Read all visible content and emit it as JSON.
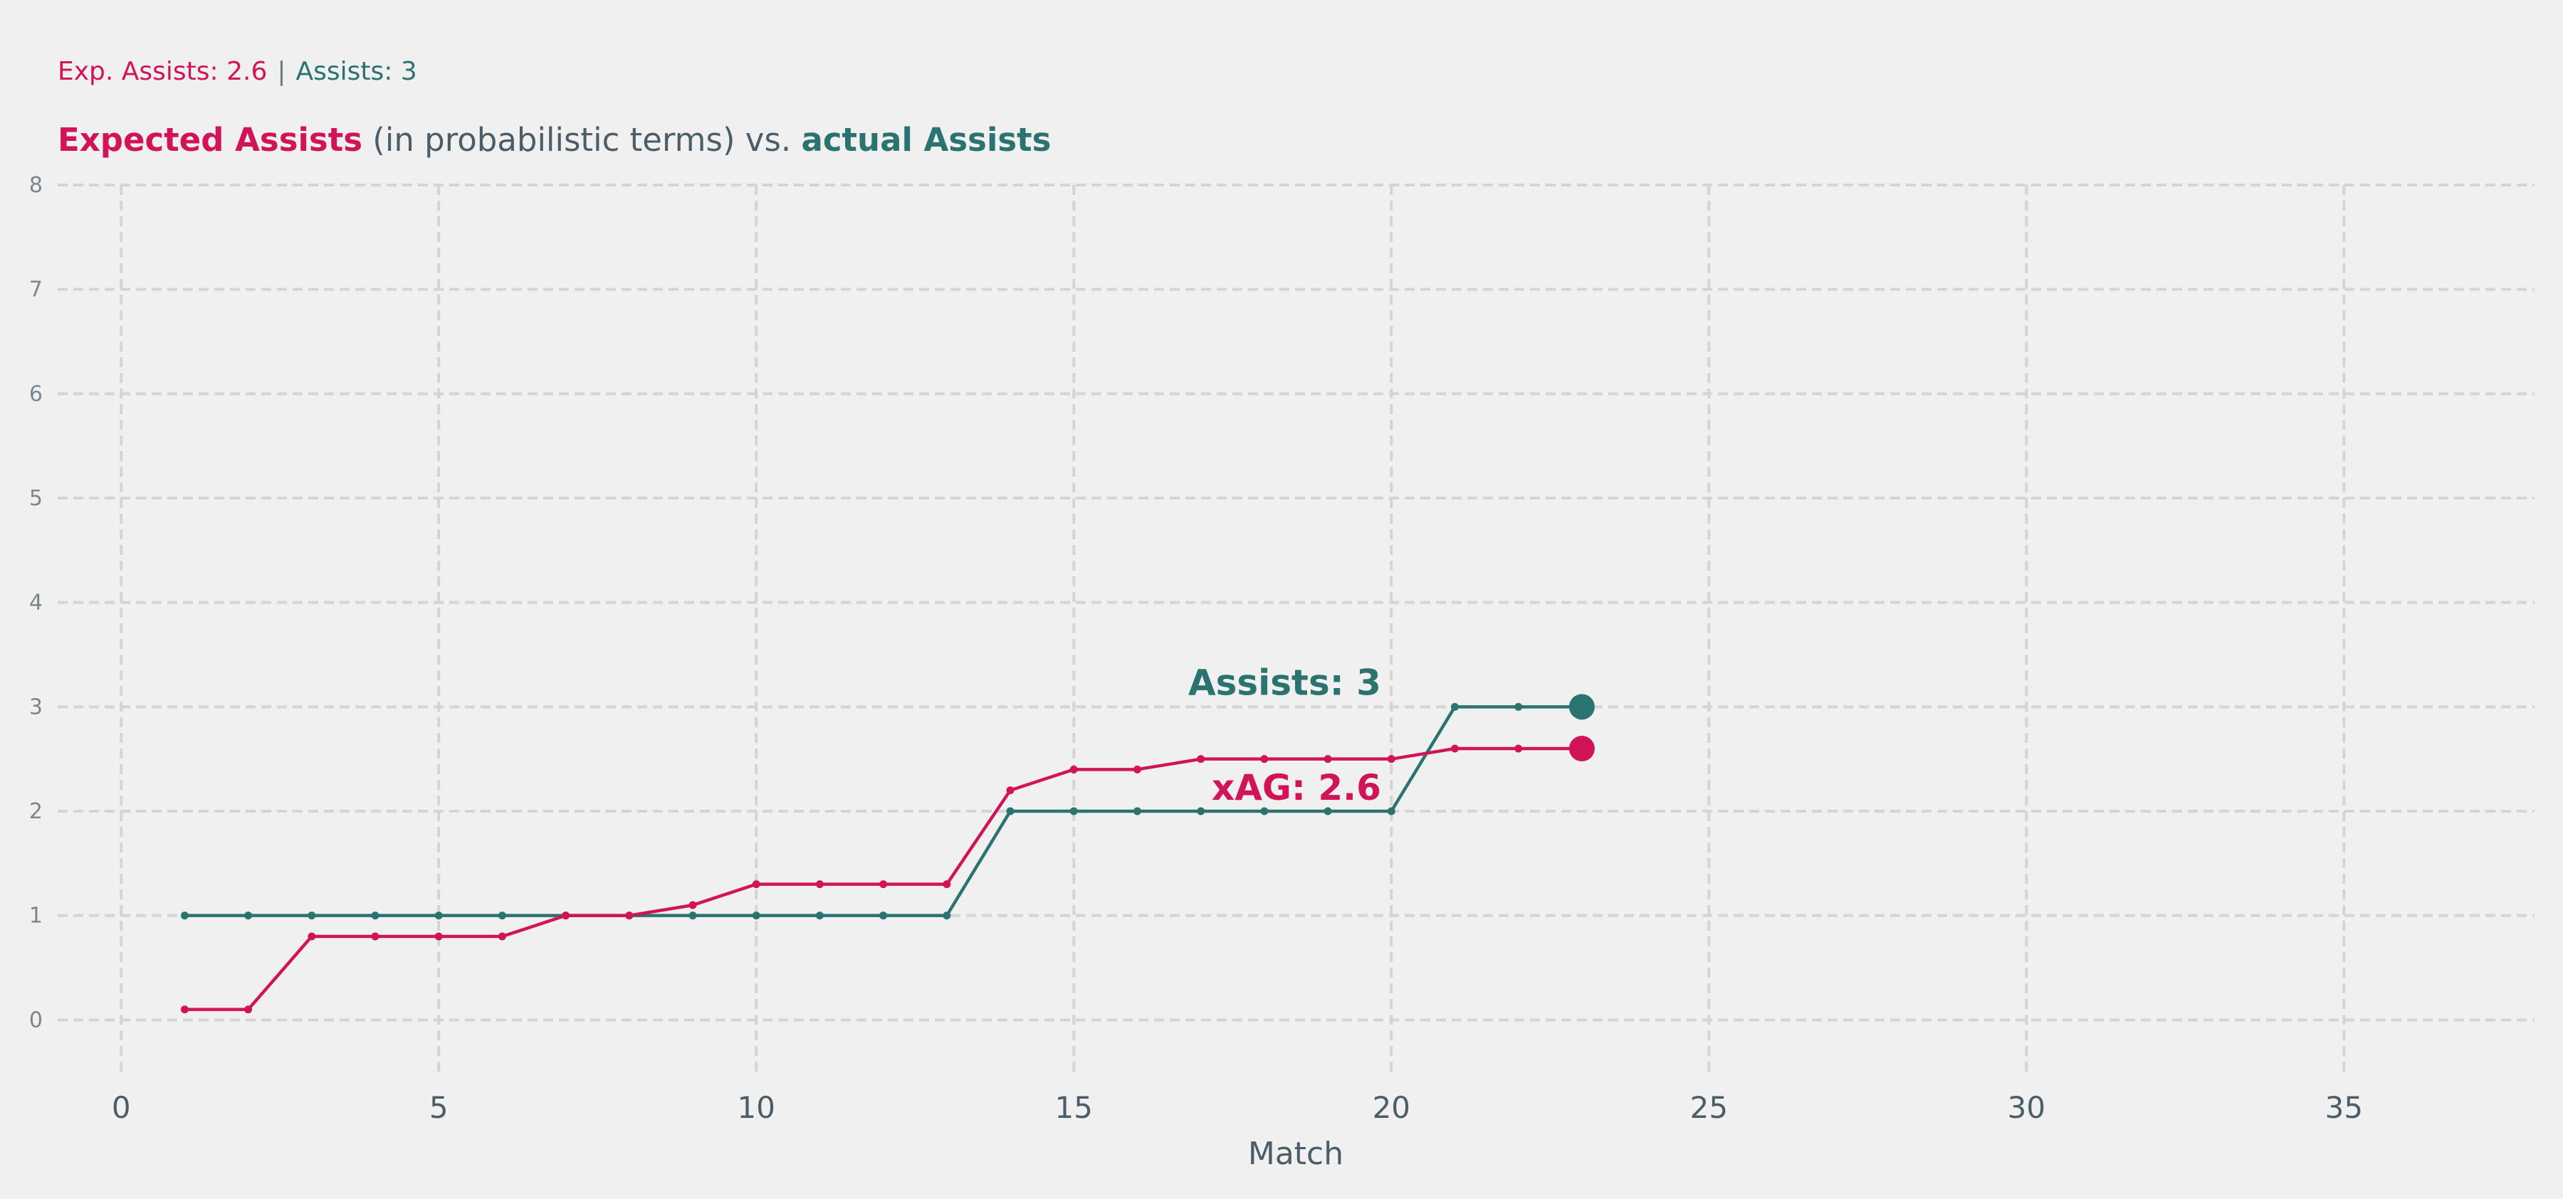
{
  "header": {
    "exp_assists_text": "Exp. Assists: 2.6",
    "separator": "|",
    "assists_text": "Assists: 3"
  },
  "title": {
    "part1": "Expected Assists",
    "part2": " (in probabilistic terms) vs. ",
    "part3": "actual Assists"
  },
  "colors": {
    "xag": "#d01457",
    "assists": "#2a7370",
    "background": "#f0f0f0",
    "grid": "#d4d4d4"
  },
  "chart_data": {
    "type": "line",
    "xlabel": "Match",
    "ylabel": "",
    "xlim": [
      -1,
      38
    ],
    "ylim": [
      -0.55,
      8
    ],
    "xticks": [
      0,
      5,
      10,
      15,
      20,
      25,
      30,
      35
    ],
    "yticks": [
      0,
      1,
      2,
      3,
      4,
      5,
      6,
      7,
      8
    ],
    "grid": true,
    "x": [
      1,
      2,
      3,
      4,
      5,
      6,
      7,
      8,
      9,
      10,
      11,
      12,
      13,
      14,
      15,
      16,
      17,
      18,
      19,
      20,
      21,
      22,
      23
    ],
    "series": [
      {
        "key": "assists",
        "values": [
          1,
          1,
          1,
          1,
          1,
          1,
          1,
          1,
          1,
          1,
          1,
          1,
          1,
          2,
          2,
          2,
          2,
          2,
          2,
          2,
          3,
          3,
          3
        ],
        "end_label": "Assists: 3"
      },
      {
        "key": "xag",
        "values": [
          0.1,
          0.1,
          0.8,
          0.8,
          0.8,
          0.8,
          1.0,
          1.0,
          1.1,
          1.3,
          1.3,
          1.3,
          1.3,
          2.2,
          2.4,
          2.4,
          2.5,
          2.5,
          2.5,
          2.5,
          2.6,
          2.6,
          2.6
        ],
        "end_label": "xAG: 2.6"
      }
    ]
  }
}
